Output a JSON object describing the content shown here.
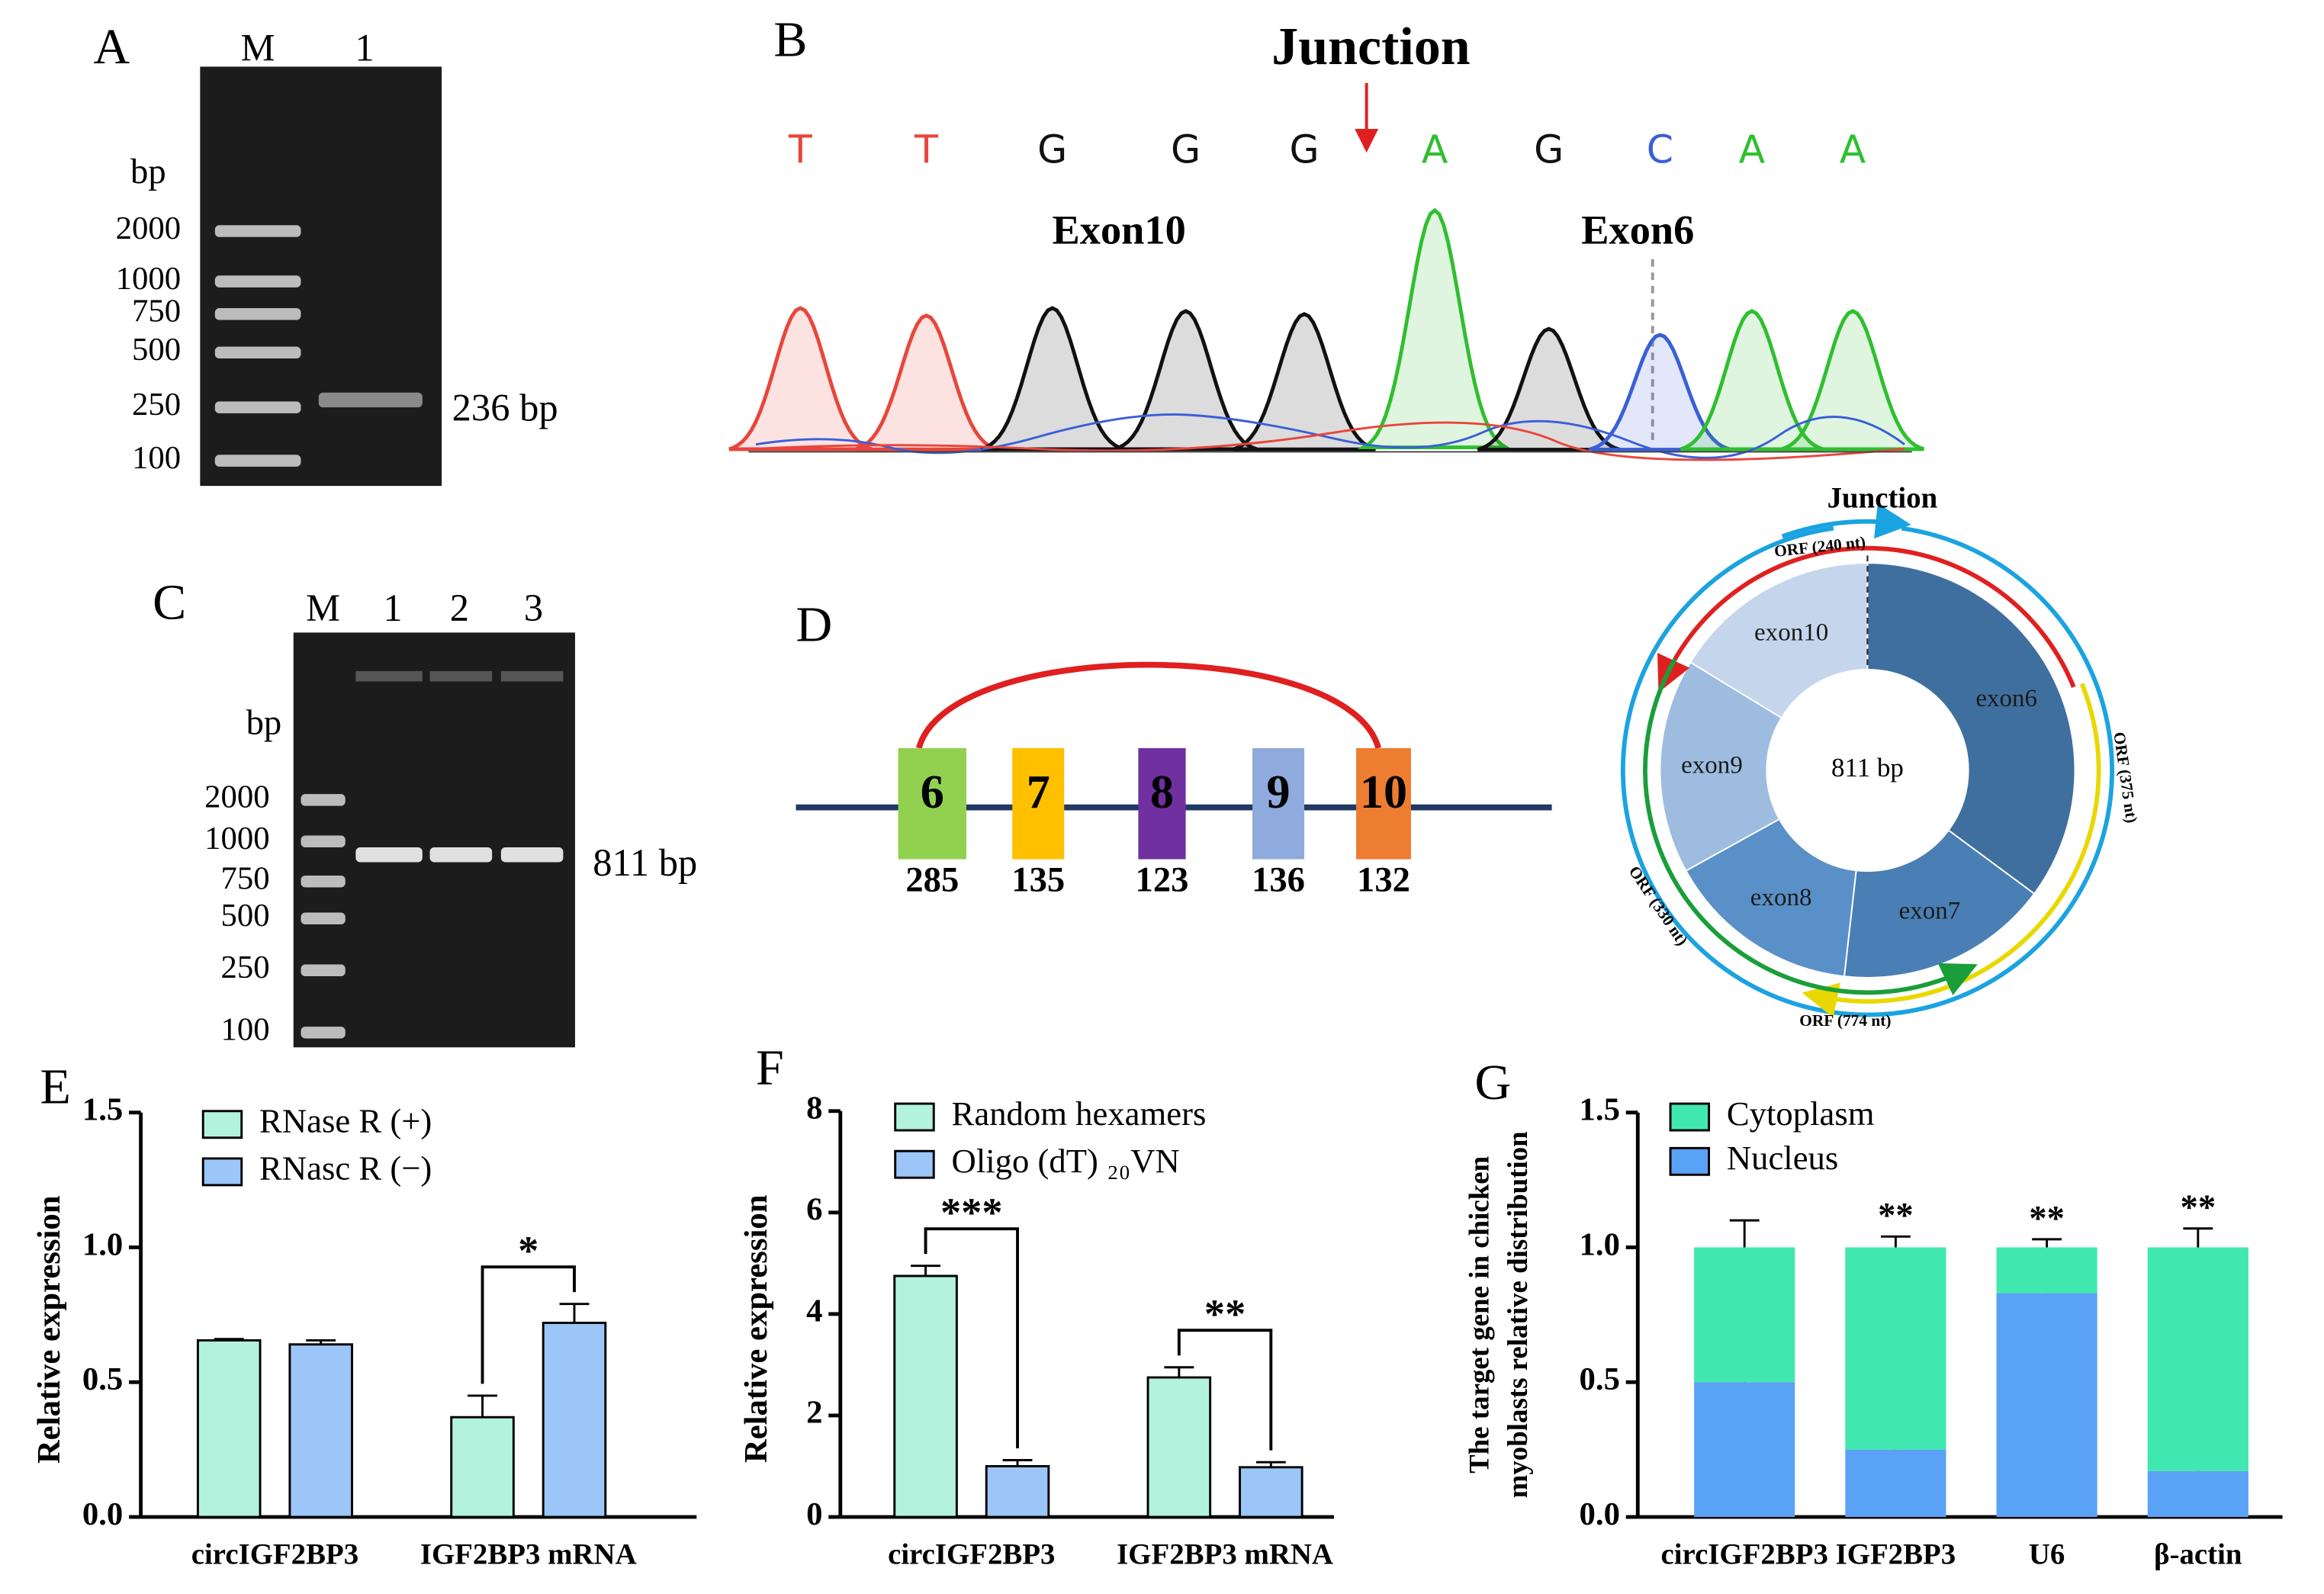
{
  "panels": {
    "A": {
      "label": "A",
      "lanes": [
        "M",
        "1"
      ],
      "unit": "bp",
      "ladder": [
        2000,
        1000,
        750,
        500,
        250,
        100
      ],
      "band": "236 bp"
    },
    "B": {
      "label": "B",
      "title": "Junction",
      "bases": [
        "T",
        "T",
        "G",
        "G",
        "G",
        "A",
        "G",
        "C",
        "A",
        "A"
      ],
      "exons": [
        "Exon10",
        "Exon6"
      ]
    },
    "C": {
      "label": "C",
      "lanes": [
        "M",
        "1",
        "2",
        "3"
      ],
      "unit": "bp",
      "ladder": [
        2000,
        1000,
        750,
        500,
        250,
        100
      ],
      "band": "811 bp"
    },
    "D": {
      "label": "D",
      "exons": [
        {
          "number": 6,
          "length": 285
        },
        {
          "number": 7,
          "length": 135
        },
        {
          "number": 8,
          "length": 123
        },
        {
          "number": 9,
          "length": 136
        },
        {
          "number": 10,
          "length": 132
        }
      ],
      "circle": {
        "title": "Junction",
        "center": "811 bp",
        "segments": [
          "exon6",
          "exon7",
          "exon8",
          "exon9",
          "exon10"
        ],
        "orfs": [
          "ORF (240 nt)",
          "ORF (375 nt)",
          "ORF (330 nt)",
          "ORF (774 nt)"
        ]
      }
    }
  },
  "chart_data": [
    {
      "type": "bar",
      "panel_label": "E",
      "ylabel": "Relative expression",
      "categories": [
        "circIGF2BP3",
        "IGF2BP3 mRNA"
      ],
      "series": [
        {
          "name": "RNase R (+)",
          "color": "#b3f2dc",
          "values": [
            0.655,
            0.37
          ],
          "errors": [
            0.005,
            0.08
          ]
        },
        {
          "name": "RNasc R (−)",
          "color": "#9cc5f8",
          "values": [
            0.64,
            0.72
          ],
          "errors": [
            0.015,
            0.07
          ]
        }
      ],
      "significance": [
        null,
        "*"
      ],
      "ylim": [
        0,
        1.5
      ],
      "yticks": [
        {
          "value": 0,
          "label": "0.0"
        },
        0.5,
        {
          "value": 1,
          "label": "1.0"
        },
        1.5
      ]
    },
    {
      "type": "bar",
      "panel_label": "F",
      "ylabel": "Relative expression",
      "categories": [
        "circIGF2BP3",
        "IGF2BP3 mRNA"
      ],
      "series": [
        {
          "name": "Random hexamers",
          "color": "#b3f2dc",
          "values": [
            4.75,
            2.75
          ],
          "errors": [
            0.2,
            0.2
          ]
        },
        {
          "name": "Oligo (dT) ₂₀VN",
          "color": "#9cc5f8",
          "values": [
            1.0,
            0.98
          ],
          "errors": [
            0.12,
            0.1
          ]
        }
      ],
      "significance": [
        "***",
        "**"
      ],
      "ylim": [
        0,
        8
      ],
      "yticks": [
        0,
        2,
        4,
        6,
        8
      ]
    },
    {
      "type": "stacked_bar",
      "panel_label": "G",
      "ylabel": [
        "The target gene in chicken",
        "myoblasts relative distribution"
      ],
      "categories": [
        "circIGF2BP3",
        "IGF2BP3",
        "U6",
        "β-actin"
      ],
      "series": [
        {
          "name": "Cytoplasm",
          "color": "#40e8b0",
          "values": [
            0.5,
            0.75,
            0.17,
            0.83
          ],
          "errors": [
            0.1,
            0.04,
            0.03,
            0.07
          ]
        },
        {
          "name": "Nucleus",
          "color": "#5aa2f5",
          "values": [
            0.5,
            0.25,
            0.83,
            0.17
          ],
          "errors": [
            0.1,
            0.04,
            0.03,
            0.07
          ]
        }
      ],
      "significance": [
        null,
        "**",
        "**",
        "**"
      ],
      "ylim": [
        0,
        1.5
      ],
      "yticks": [
        {
          "value": 0,
          "label": "0.0"
        },
        0.5,
        {
          "value": 1,
          "label": "1.0"
        },
        1.5
      ]
    }
  ]
}
